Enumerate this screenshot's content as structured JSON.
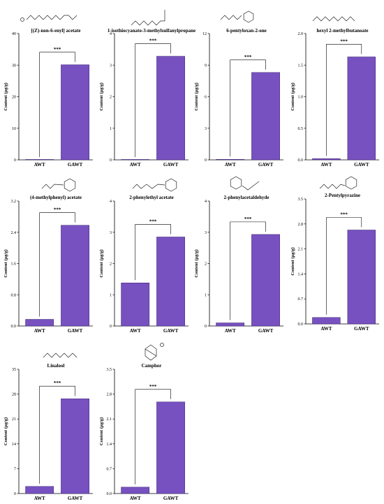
{
  "figure": {
    "bar_color": "#7751c0",
    "bar_edge": "#3a2470"
  },
  "chart_data": [
    {
      "type": "bar",
      "title": "[(Z)-non-6-enyl] acetate",
      "ylabel": "Content (μg/g)",
      "categories": [
        "AWT",
        "GAWT"
      ],
      "values": [
        0,
        30.1
      ],
      "ylim": [
        0,
        40
      ],
      "yticks": [
        0,
        10,
        20,
        30,
        40
      ],
      "ytick_labels": [
        "0",
        "10",
        "20",
        "30",
        "40"
      ],
      "annotation": "***",
      "grid": false,
      "structure_icon": "nonenyl-acetate-structure-icon"
    },
    {
      "type": "bar",
      "title": "1-isothiocyanato-3-methylsulfanylpropane",
      "ylabel": "Content (μg/g)",
      "categories": [
        "AWT",
        "GAWT"
      ],
      "values": [
        0,
        3.28
      ],
      "ylim": [
        0,
        4
      ],
      "yticks": [
        0,
        1,
        2,
        3,
        4
      ],
      "ytick_labels": [
        "0",
        "1",
        "2",
        "3",
        "4"
      ],
      "annotation": "***",
      "grid": false,
      "structure_icon": "isothiocyanate-structure-icon"
    },
    {
      "type": "bar",
      "title": "6-pentyloxan-2-one",
      "ylabel": "Content (μg/g)",
      "categories": [
        "AWT",
        "GAWT"
      ],
      "values": [
        0.05,
        8.3
      ],
      "ylim": [
        0,
        12
      ],
      "yticks": [
        0,
        3,
        6,
        9,
        12
      ],
      "ytick_labels": [
        "0",
        "3",
        "6",
        "9",
        "12"
      ],
      "annotation": "***",
      "grid": false,
      "structure_icon": "lactone-structure-icon"
    },
    {
      "type": "bar",
      "title": "hexyl 2-methylbutanoate",
      "ylabel": "Content (μg/g)",
      "categories": [
        "AWT",
        "GAWT"
      ],
      "values": [
        0.02,
        1.63
      ],
      "ylim": [
        0,
        2.0
      ],
      "yticks": [
        0,
        0.5,
        1.0,
        1.5,
        2.0
      ],
      "ytick_labels": [
        "0.0",
        "0.5",
        "1.0",
        "1.5",
        "2.0"
      ],
      "annotation": "***",
      "grid": false,
      "structure_icon": "hexyl-ester-structure-icon"
    },
    {
      "type": "bar",
      "title": "(4-methylphenyl) acetate",
      "ylabel": "Content (μg/g)",
      "categories": [
        "AWT",
        "GAWT"
      ],
      "values": [
        0.17,
        2.58
      ],
      "ylim": [
        0,
        3.2
      ],
      "yticks": [
        0,
        0.8,
        1.6,
        2.4,
        3.2
      ],
      "ytick_labels": [
        "0.0",
        "0.8",
        "1.6",
        "2.4",
        "3.2"
      ],
      "annotation": "***",
      "grid": false,
      "structure_icon": "cresyl-acetate-structure-icon"
    },
    {
      "type": "bar",
      "title": "2-phenylethyl acetate",
      "ylabel": "Content (μg/g)",
      "categories": [
        "AWT",
        "GAWT"
      ],
      "values": [
        1.38,
        2.85
      ],
      "ylim": [
        0,
        4
      ],
      "yticks": [
        0,
        1,
        2,
        3,
        4
      ],
      "ytick_labels": [
        "0",
        "1",
        "2",
        "3",
        "4"
      ],
      "annotation": "***",
      "grid": false,
      "structure_icon": "phenylethyl-acetate-structure-icon"
    },
    {
      "type": "bar",
      "title": "2-phenylacetaldehyde",
      "ylabel": "Content (μg/g)",
      "categories": [
        "AWT",
        "GAWT"
      ],
      "values": [
        0.1,
        2.93
      ],
      "ylim": [
        0,
        4
      ],
      "yticks": [
        0,
        1,
        2,
        3,
        4
      ],
      "ytick_labels": [
        "0",
        "1",
        "2",
        "3",
        "4"
      ],
      "annotation": "***",
      "grid": false,
      "structure_icon": "phenylacetaldehyde-structure-icon"
    },
    {
      "type": "bar",
      "title": "2-Pentylpyrazine",
      "ylabel": "Content (μg/g)",
      "categories": [
        "AWT",
        "GAWT"
      ],
      "values": [
        0.18,
        2.63
      ],
      "ylim": [
        0,
        3.5
      ],
      "yticks": [
        0,
        0.7,
        1.4,
        2.1,
        2.8,
        3.5
      ],
      "ytick_labels": [
        "0.0",
        "0.7",
        "1.4",
        "2.1",
        "2.8",
        "3.5"
      ],
      "annotation": "***",
      "grid": false,
      "structure_icon": "pentylpyrazine-structure-icon"
    },
    {
      "type": "bar",
      "title": "Linalool",
      "ylabel": "Content (μg/g)",
      "categories": [
        "AWT",
        "GAWT"
      ],
      "values": [
        2.0,
        26.7
      ],
      "ylim": [
        0,
        35
      ],
      "yticks": [
        0,
        7,
        14,
        21,
        28,
        35
      ],
      "ytick_labels": [
        "0",
        "7",
        "14",
        "21",
        "28",
        "35"
      ],
      "annotation": "***",
      "grid": false,
      "structure_icon": "linalool-structure-icon"
    },
    {
      "type": "bar",
      "title": "Camphor",
      "ylabel": "Content (μg/g)",
      "categories": [
        "AWT",
        "GAWT"
      ],
      "values": [
        0.18,
        2.58
      ],
      "ylim": [
        0,
        3.5
      ],
      "yticks": [
        0,
        0.7,
        1.4,
        2.1,
        2.8,
        3.5
      ],
      "ytick_labels": [
        "0.0",
        "0.7",
        "1.4",
        "2.1",
        "2.8",
        "3.5"
      ],
      "annotation": "***",
      "grid": false,
      "structure_icon": "camphor-structure-icon"
    }
  ]
}
